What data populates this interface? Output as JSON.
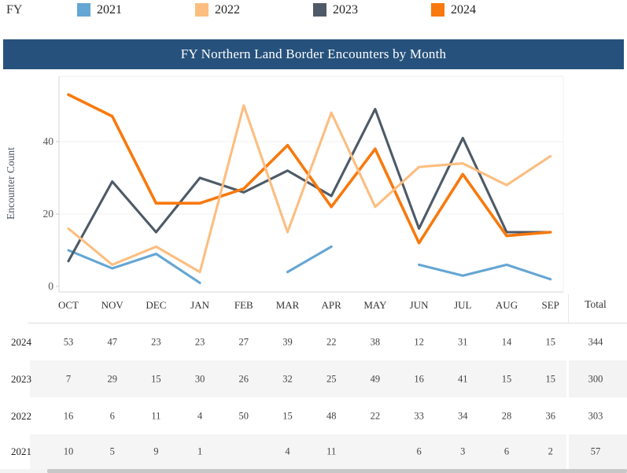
{
  "title": "FY Northern Land Border Encounters by Month",
  "title_bar_color": "#26517c",
  "legend": {
    "label": "FY",
    "items": [
      {
        "label": "2021",
        "color": "#64a6d4"
      },
      {
        "label": "2022",
        "color": "#fcbe80"
      },
      {
        "label": "2023",
        "color": "#4e5a67"
      },
      {
        "label": "2024",
        "color": "#f8790d"
      }
    ]
  },
  "chart_data": {
    "type": "line",
    "x": [
      "OCT",
      "NOV",
      "DEC",
      "JAN",
      "FEB",
      "MAR",
      "APR",
      "MAY",
      "JUN",
      "JUL",
      "AUG",
      "SEP"
    ],
    "xlabel": "",
    "ylabel": "Encounter Count",
    "yticks": [
      0,
      20,
      40
    ],
    "ylim": [
      0,
      58
    ],
    "grid": true,
    "legend_position": "top",
    "series": [
      {
        "name": "2021",
        "color": "#64a6d4",
        "values": [
          10,
          5,
          9,
          1,
          null,
          4,
          11,
          null,
          6,
          3,
          6,
          2
        ]
      },
      {
        "name": "2022",
        "color": "#fcbe80",
        "values": [
          16,
          6,
          11,
          4,
          50,
          15,
          48,
          22,
          33,
          34,
          28,
          36
        ]
      },
      {
        "name": "2023",
        "color": "#4e5a67",
        "values": [
          7,
          29,
          15,
          30,
          26,
          32,
          25,
          49,
          16,
          41,
          15,
          15
        ]
      },
      {
        "name": "2024",
        "color": "#f8790d",
        "values": [
          53,
          47,
          23,
          23,
          27,
          39,
          22,
          38,
          12,
          31,
          14,
          15
        ]
      }
    ],
    "draw_order": [
      "2021",
      "2023",
      "2024",
      "2022"
    ]
  },
  "table": {
    "total_label": "Total",
    "rows": [
      {
        "year": "2024",
        "values": [
          "53",
          "47",
          "23",
          "23",
          "27",
          "39",
          "22",
          "38",
          "12",
          "31",
          "14",
          "15"
        ],
        "total": "344",
        "shaded": false
      },
      {
        "year": "2023",
        "values": [
          "7",
          "29",
          "15",
          "30",
          "26",
          "32",
          "25",
          "49",
          "16",
          "41",
          "15",
          "15"
        ],
        "total": "300",
        "shaded": true
      },
      {
        "year": "2022",
        "values": [
          "16",
          "6",
          "11",
          "4",
          "50",
          "15",
          "48",
          "22",
          "33",
          "34",
          "28",
          "36"
        ],
        "total": "303",
        "shaded": false
      },
      {
        "year": "2021",
        "values": [
          "10",
          "5",
          "9",
          "1",
          "",
          "4",
          "11",
          "",
          "6",
          "3",
          "6",
          "2"
        ],
        "total": "57",
        "shaded": true
      }
    ]
  }
}
